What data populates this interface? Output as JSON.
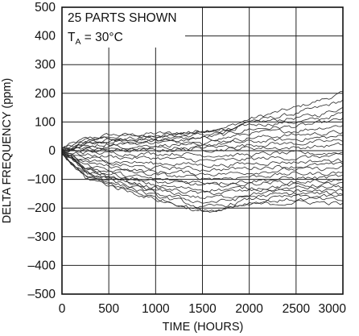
{
  "chart_data": {
    "type": "line",
    "xlabel": "TIME (HOURS)",
    "ylabel": "DELTA FREQUENCY (ppm)",
    "xlim": [
      0,
      3000
    ],
    "ylim": [
      -500,
      500
    ],
    "x_ticks": [
      "0",
      "500",
      "1000",
      "1500",
      "2000",
      "2500",
      "3000"
    ],
    "y_ticks": [
      "500",
      "400",
      "300",
      "200",
      "100",
      "0",
      "–100",
      "–200",
      "–300",
      "–400",
      "–500"
    ],
    "grid": true,
    "annotation": {
      "line1": "25 PARTS SHOWN",
      "line2_main": "T",
      "line2_sub": "A",
      "line2_rest": " = 30°C"
    },
    "x": [
      0,
      250,
      500,
      750,
      1000,
      1250,
      1500,
      1750,
      2000,
      2250,
      2500,
      2750,
      3000
    ],
    "series": [
      {
        "values": [
          10,
          40,
          55,
          55,
          60,
          60,
          70,
          80,
          110,
          130,
          150,
          175,
          200
        ]
      },
      {
        "values": [
          8,
          35,
          50,
          50,
          55,
          60,
          65,
          75,
          100,
          115,
          130,
          150,
          175
        ]
      },
      {
        "values": [
          5,
          30,
          45,
          45,
          50,
          55,
          60,
          70,
          95,
          105,
          115,
          125,
          150
        ]
      },
      {
        "values": [
          5,
          30,
          40,
          40,
          45,
          50,
          55,
          65,
          90,
          95,
          100,
          110,
          130
        ]
      },
      {
        "values": [
          3,
          25,
          35,
          35,
          40,
          40,
          45,
          55,
          75,
          80,
          85,
          95,
          110
        ]
      },
      {
        "values": [
          2,
          20,
          30,
          30,
          35,
          35,
          40,
          45,
          60,
          65,
          70,
          80,
          90
        ]
      },
      {
        "values": [
          2,
          15,
          25,
          25,
          30,
          30,
          30,
          35,
          45,
          50,
          55,
          60,
          65
        ]
      },
      {
        "values": [
          0,
          10,
          15,
          15,
          20,
          20,
          20,
          25,
          30,
          35,
          40,
          45,
          50
        ]
      },
      {
        "values": [
          0,
          5,
          5,
          5,
          10,
          10,
          10,
          15,
          20,
          25,
          25,
          30,
          35
        ]
      },
      {
        "values": [
          0,
          0,
          0,
          0,
          0,
          5,
          5,
          5,
          10,
          10,
          10,
          15,
          20
        ]
      },
      {
        "values": [
          0,
          -5,
          -10,
          -10,
          -10,
          -10,
          -15,
          -15,
          -15,
          -10,
          -10,
          -10,
          -5
        ]
      },
      {
        "values": [
          -2,
          -15,
          -20,
          -25,
          -25,
          -30,
          -35,
          -35,
          -30,
          -25,
          -25,
          -20,
          -20
        ]
      },
      {
        "values": [
          -2,
          -25,
          -35,
          -40,
          -45,
          -45,
          -50,
          -50,
          -45,
          -40,
          -40,
          -35,
          -35
        ]
      },
      {
        "values": [
          -3,
          -35,
          -45,
          -55,
          -60,
          -60,
          -65,
          -65,
          -60,
          -55,
          -55,
          -50,
          -50
        ]
      },
      {
        "values": [
          -3,
          -40,
          -55,
          -65,
          -75,
          -75,
          -80,
          -80,
          -75,
          -70,
          -65,
          -65,
          -60
        ]
      },
      {
        "values": [
          -5,
          -50,
          -65,
          -75,
          -85,
          -90,
          -95,
          -95,
          -90,
          -85,
          -80,
          -80,
          -75
        ]
      },
      {
        "values": [
          -5,
          -55,
          -75,
          -90,
          -100,
          -105,
          -110,
          -110,
          -105,
          -100,
          -95,
          -95,
          -90
        ]
      },
      {
        "values": [
          -5,
          -60,
          -80,
          -95,
          -110,
          -115,
          -120,
          -120,
          -115,
          -110,
          -110,
          -105,
          -105
        ]
      },
      {
        "values": [
          -8,
          -65,
          -90,
          -105,
          -120,
          -130,
          -135,
          -135,
          -130,
          -125,
          -120,
          -120,
          -115
        ]
      },
      {
        "values": [
          -8,
          -70,
          -95,
          -110,
          -130,
          -140,
          -150,
          -145,
          -140,
          -135,
          -130,
          -130,
          -125
        ]
      },
      {
        "values": [
          -10,
          -75,
          -100,
          -120,
          -140,
          -150,
          -165,
          -160,
          -150,
          -145,
          -140,
          -140,
          -140
        ]
      },
      {
        "values": [
          -10,
          -80,
          -105,
          -125,
          -150,
          -165,
          -180,
          -175,
          -160,
          -155,
          -150,
          -150,
          -150
        ]
      },
      {
        "values": [
          -10,
          -85,
          -110,
          -130,
          -160,
          -175,
          -200,
          -190,
          -170,
          -165,
          -160,
          -160,
          -160
        ]
      },
      {
        "values": [
          -12,
          -90,
          -115,
          -140,
          -165,
          -185,
          -210,
          -200,
          -180,
          -175,
          -170,
          -170,
          -175
        ]
      },
      {
        "values": [
          -12,
          -95,
          -120,
          -145,
          -170,
          -190,
          -215,
          -205,
          -190,
          -185,
          -180,
          -180,
          -185
        ]
      }
    ]
  }
}
